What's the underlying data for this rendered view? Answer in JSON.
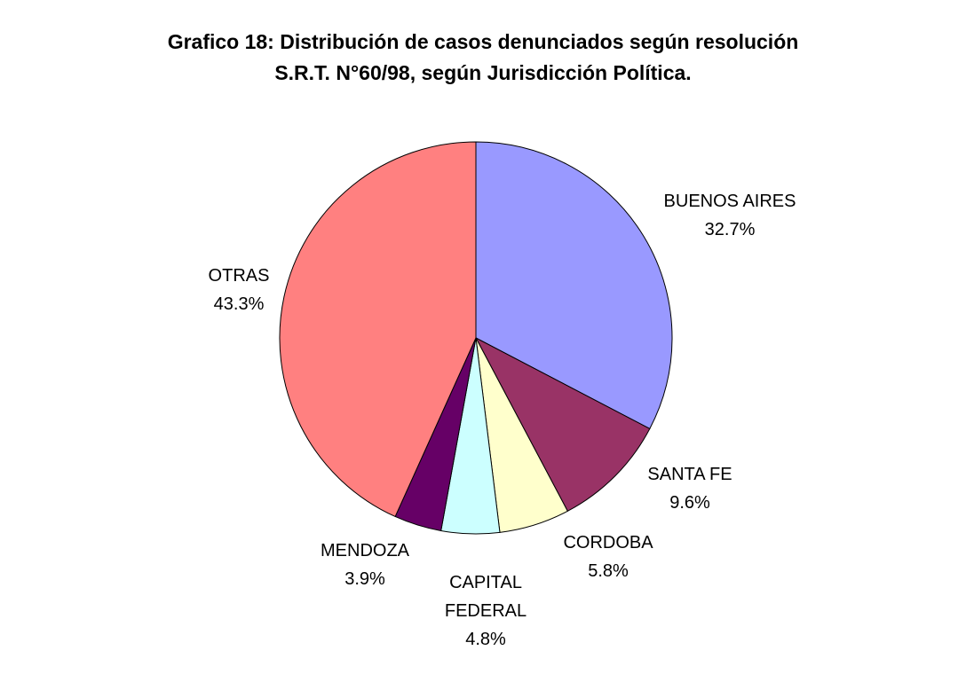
{
  "chart_data": {
    "type": "pie",
    "title": [
      "Grafico 18: Distribución de casos denunciados según resolución",
      "S.R.T. N°60/98, según Jurisdicción Política."
    ],
    "start": "12 o'clock",
    "direction": "clockwise",
    "legend": "none",
    "slices": [
      {
        "name": "BUENOS AIRES",
        "label_lines": [
          "BUENOS AIRES"
        ],
        "value": 32.7,
        "value_label": "32.7%",
        "color": "#9999FF"
      },
      {
        "name": "SANTA FE",
        "label_lines": [
          "SANTA FE"
        ],
        "value": 9.6,
        "value_label": "9.6%",
        "color": "#993366"
      },
      {
        "name": "CORDOBA",
        "label_lines": [
          "CORDOBA"
        ],
        "value": 5.8,
        "value_label": "5.8%",
        "color": "#FFFFCC"
      },
      {
        "name": "CAPITAL FEDERAL",
        "label_lines": [
          "CAPITAL",
          "FEDERAL"
        ],
        "value": 4.8,
        "value_label": "4.8%",
        "color": "#CCFFFF"
      },
      {
        "name": "MENDOZA",
        "label_lines": [
          "MENDOZA"
        ],
        "value": 3.9,
        "value_label": "3.9%",
        "color": "#660066"
      },
      {
        "name": "OTRAS",
        "label_lines": [
          "OTRAS"
        ],
        "value": 43.3,
        "value_label": "43.3%",
        "color": "#FF8080"
      }
    ]
  }
}
